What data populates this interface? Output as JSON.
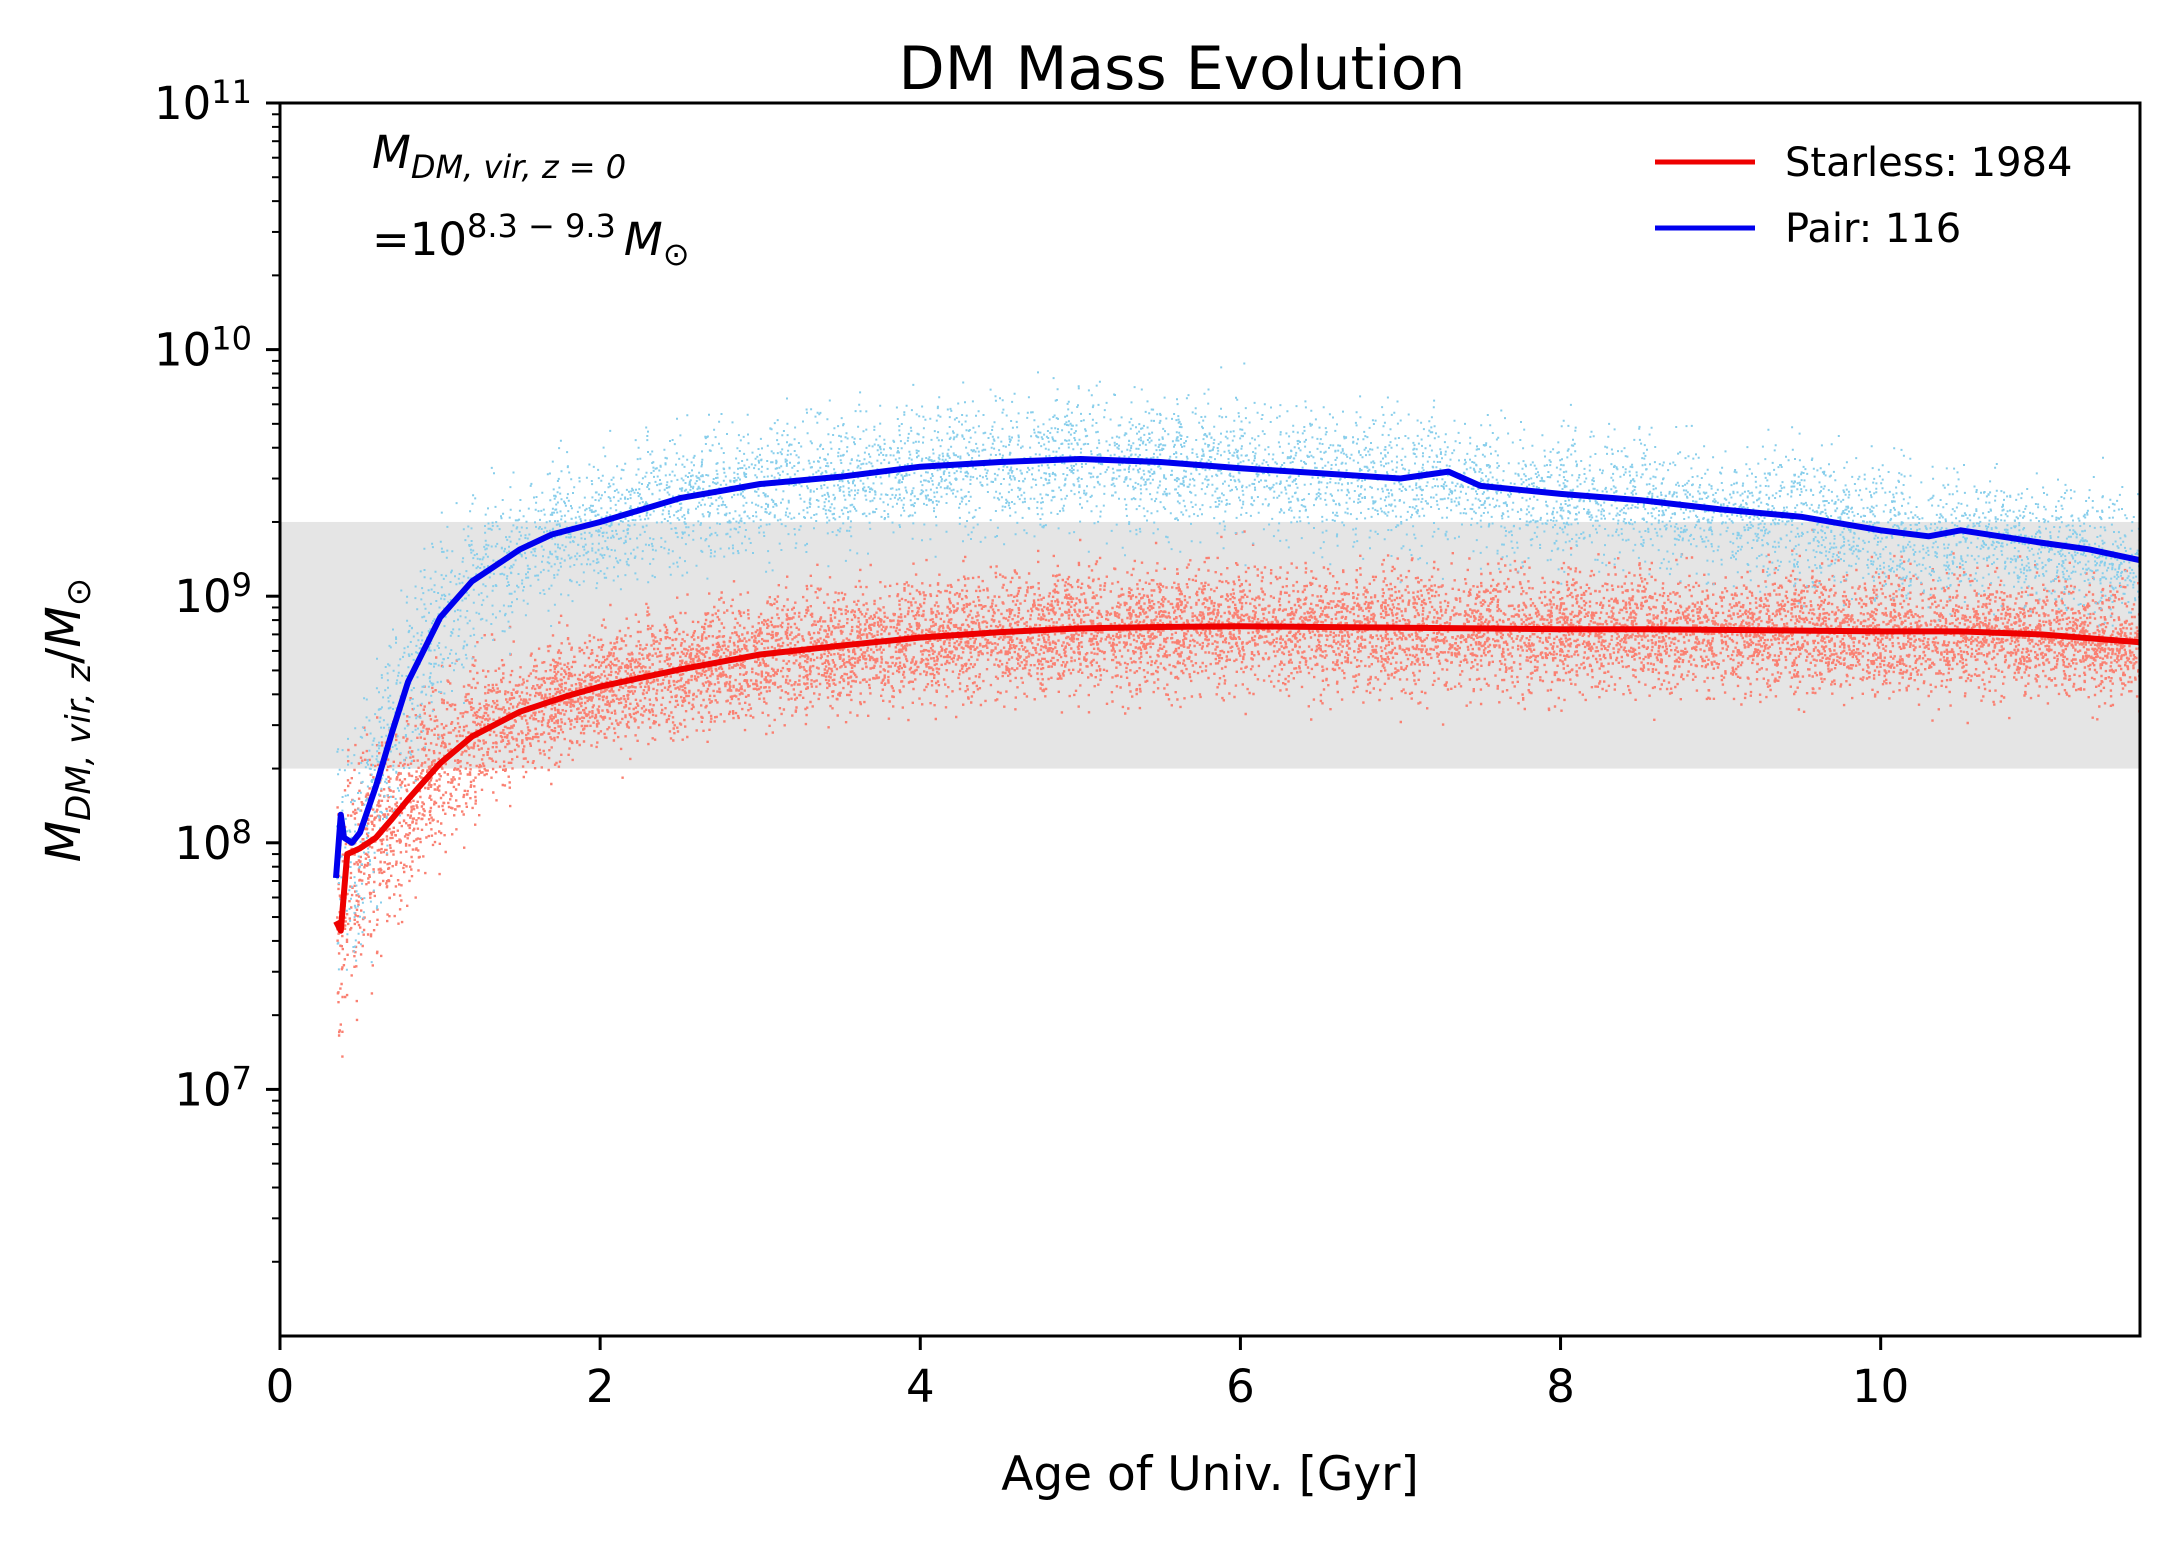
{
  "chart_data": {
    "type": "line",
    "title": "DM Mass Evolution",
    "xlabel": "Age of Univ. [Gyr]",
    "ylabel": "M_{DM,vir,z}/M_⊙",
    "ylabel_parts": {
      "main": "M",
      "sub": "DM, vir, z",
      "slash": "/",
      "main2": "M",
      "sub2": "⊙"
    },
    "xlim": [
      0,
      11.62
    ],
    "ylim_log10": [
      6,
      11
    ],
    "yscale": "log",
    "xticks": [
      0,
      2,
      4,
      6,
      8,
      10
    ],
    "xtick_labels": [
      "0",
      "2",
      "4",
      "6",
      "8",
      "10"
    ],
    "yticks_log10": [
      7,
      8,
      9,
      10,
      11
    ],
    "ytick_labels": [
      {
        "base": "10",
        "exp": "7"
      },
      {
        "base": "10",
        "exp": "8"
      },
      {
        "base": "10",
        "exp": "9"
      },
      {
        "base": "10",
        "exp": "10"
      },
      {
        "base": "10",
        "exp": "11"
      }
    ],
    "grid": false,
    "legend_position": "upper right",
    "annotation": {
      "line1_main": "M",
      "line1_sub": "DM, vir, z = 0",
      "line2_prefix": "=10",
      "line2_exp": "8.3 − 9.3",
      "line2_main": "M",
      "line2_sub": "⊙"
    },
    "shaded_band": {
      "y_low": 200000000,
      "y_high": 2000000000,
      "color": "#bbbbbb"
    },
    "series": [
      {
        "name": "Starless: 1984",
        "color": "#ee0000",
        "scatter_color": "#fa8072",
        "x": [
          0.35,
          0.38,
          0.42,
          0.5,
          0.6,
          0.7,
          0.8,
          1.0,
          1.2,
          1.5,
          1.8,
          2.0,
          2.5,
          3.0,
          3.5,
          4.0,
          4.5,
          5.0,
          5.5,
          6.0,
          6.5,
          7.0,
          7.5,
          8.0,
          8.5,
          9.0,
          9.5,
          10.0,
          10.5,
          11.0,
          11.62
        ],
        "y": [
          48000000,
          44000000,
          90000000,
          95000000,
          105000000,
          125000000,
          150000000,
          210000000,
          270000000,
          340000000,
          395000000,
          430000000,
          505000000,
          580000000,
          630000000,
          680000000,
          715000000,
          740000000,
          750000000,
          755000000,
          750000000,
          745000000,
          740000000,
          735000000,
          735000000,
          730000000,
          725000000,
          720000000,
          720000000,
          700000000,
          650000000
        ]
      },
      {
        "name": "Pair: 116",
        "color": "#0000ee",
        "scatter_color": "#87ceeb",
        "x": [
          0.35,
          0.38,
          0.4,
          0.45,
          0.5,
          0.6,
          0.7,
          0.8,
          1.0,
          1.2,
          1.5,
          1.7,
          2.0,
          2.5,
          3.0,
          3.5,
          4.0,
          4.5,
          5.0,
          5.5,
          6.0,
          6.5,
          7.0,
          7.3,
          7.5,
          8.0,
          8.5,
          9.0,
          9.5,
          10.0,
          10.3,
          10.5,
          11.0,
          11.3,
          11.62
        ],
        "y": [
          72000000,
          130000000,
          105000000,
          100000000,
          110000000,
          170000000,
          280000000,
          450000000,
          820000000,
          1150000000,
          1550000000,
          1780000000,
          2000000000,
          2500000000,
          2850000000,
          3050000000,
          3350000000,
          3500000000,
          3600000000,
          3500000000,
          3300000000,
          3150000000,
          3000000000,
          3200000000,
          2800000000,
          2600000000,
          2450000000,
          2250000000,
          2100000000,
          1850000000,
          1750000000,
          1850000000,
          1650000000,
          1550000000,
          1400000000
        ]
      }
    ]
  }
}
